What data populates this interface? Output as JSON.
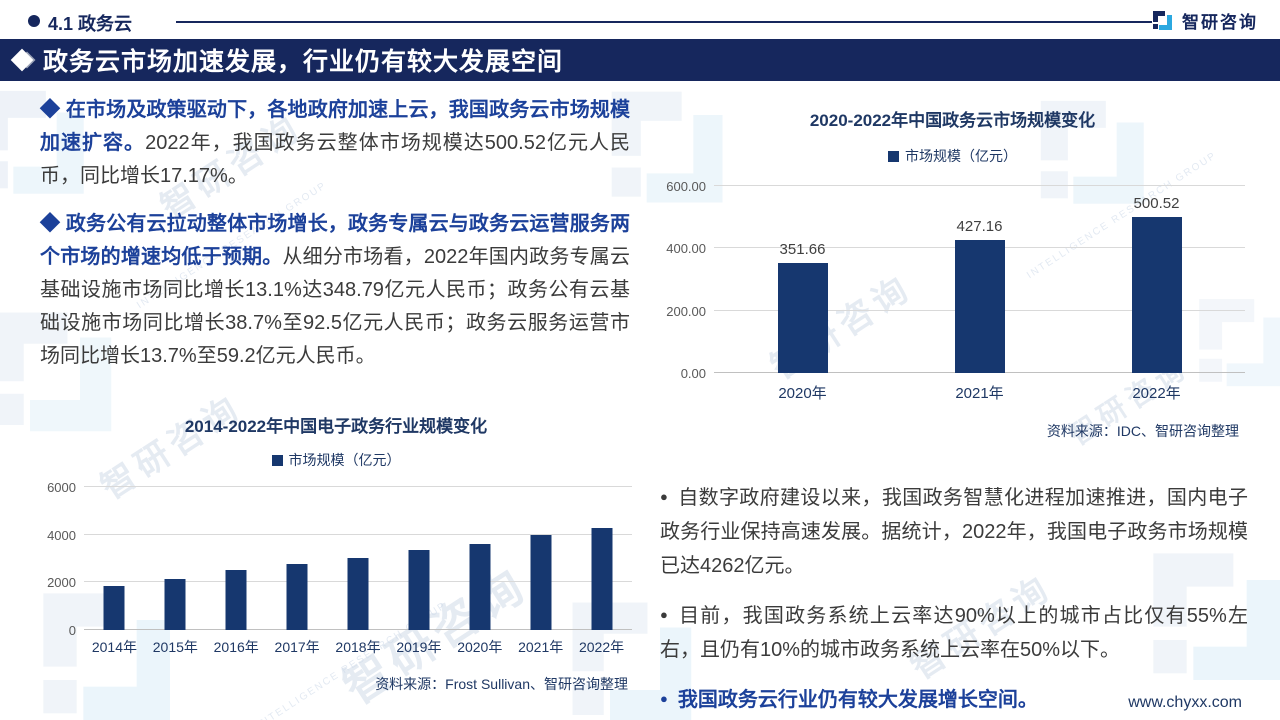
{
  "header": {
    "section": "4.1 政务云",
    "logo_text": "智研咨询"
  },
  "banner": {
    "title": "政务云市场加速发展，行业仍有较大发展空间"
  },
  "left": {
    "para1_lead": "◆ 在市场及政策驱动下，各地政府加速上云，我国政务云市场规模加速扩容。",
    "para1_rest": "2022年，我国政务云整体市场规模达500.52亿元人民币，同比增长17.17%。",
    "para2_lead": "◆ 政务公有云拉动整体市场增长，政务专属云与政务云运营服务两个市场的增速均低于预期。",
    "para2_rest": "从细分市场看，2022年国内政务专属云基础设施市场同比增长13.1%达348.79亿元人民币；政务公有云基础设施市场同比增长38.7%至92.5亿元人民币；政务云服务运营市场同比增长13.7%至59.2亿元人民币。"
  },
  "right": {
    "marker": "●",
    "bullet1": "自数字政府建设以来，我国政务智慧化进程加速推进，国内电子政务行业保持高速发展。据统计，2022年，我国电子政务市场规模已达4262亿元。",
    "bullet2": "目前，我国政务系统上云率达90%以上的城市占比仅有55%左右，且仍有10%的城市政务系统上云率在50%以下。",
    "bullet3": "我国政务云行业仍有较大发展增长空间。"
  },
  "chart_data": [
    {
      "type": "bar",
      "title": "2014-2022年中国电子政务行业规模变化",
      "legend": "市场规模（亿元）",
      "categories": [
        "2014年",
        "2015年",
        "2016年",
        "2017年",
        "2018年",
        "2019年",
        "2020年",
        "2021年",
        "2022年"
      ],
      "values": [
        1852,
        2160,
        2500,
        2770,
        3030,
        3370,
        3620,
        3970,
        4262
      ],
      "ylim": [
        0,
        6000
      ],
      "yticks": [
        "0",
        "2000",
        "4000",
        "6000"
      ],
      "show_value_labels": false,
      "grid": true,
      "legend_position": "top",
      "source": "资料来源：Frost Sullivan、智研咨询整理"
    },
    {
      "type": "bar",
      "title": "2020-2022年中国政务云市场规模变化",
      "legend": "市场规模（亿元）",
      "categories": [
        "2020年",
        "2021年",
        "2022年"
      ],
      "values": [
        351.66,
        427.16,
        500.52
      ],
      "value_labels": [
        "351.66",
        "427.16",
        "500.52"
      ],
      "ylim": [
        0,
        600
      ],
      "yticks": [
        "0.00",
        "200.00",
        "400.00",
        "600.00"
      ],
      "show_value_labels": true,
      "grid": true,
      "legend_position": "top",
      "source": "资料来源：IDC、智研咨询整理"
    }
  ],
  "footer": {
    "url": "www.chyxx.com"
  },
  "watermark": {
    "text": "智研咨询",
    "caption": "INTELLIGENCE RESEARCH GROUP"
  },
  "colors": {
    "navy": "#16275d",
    "bar": "#16376f",
    "accent_text": "#1c419a",
    "chart_label": "#1f3864",
    "logo_cyan": "#2ba8e0"
  }
}
